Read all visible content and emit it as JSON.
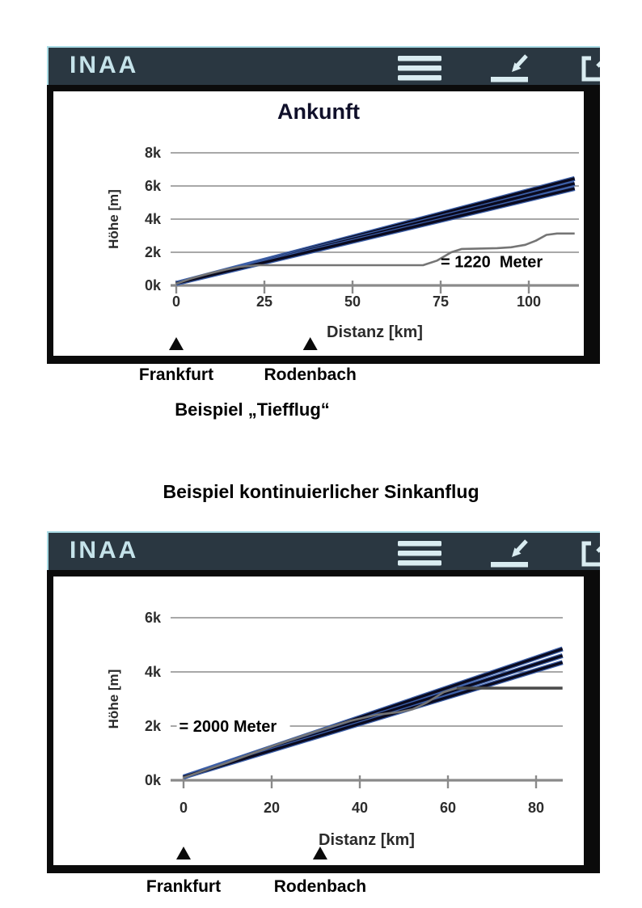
{
  "colors": {
    "header_bg": "#2a3741",
    "header_accent": "#a9dbe4",
    "app_title_text": "#c5e3ea",
    "icon": "#d9ecf1",
    "panel_border": "#0b0b0b",
    "grid": "#9b9b9b",
    "axis": "#8a8a8a",
    "tick_text": "#2d2d2d",
    "title_text": "#10102a",
    "label_text": "#2b2b2b",
    "bundle": "#0a0a1f",
    "bundle_glow": "#3c5fa8",
    "profile": "#757575",
    "level_line": "#4c4c4c",
    "annotation_text": "#000000",
    "marker": "#0a0a0a"
  },
  "panels": [
    {
      "header": {
        "title": "INAA",
        "icons": [
          {
            "name": "menu-icon"
          },
          {
            "name": "dock-arrow-icon"
          },
          {
            "name": "external-window-icon"
          }
        ]
      },
      "caption": "Beispiel „Tiefflug“",
      "chart_data": {
        "type": "line",
        "title": "Ankunft",
        "xlabel": "Distanz [km]",
        "ylabel": "Höhe [m]",
        "xlim": [
          0,
          115
        ],
        "ylim": [
          0,
          9000
        ],
        "grid": true,
        "legend": false,
        "xticks": [
          0,
          25,
          50,
          75,
          100
        ],
        "xtick_labels": [
          "0",
          "25",
          "50",
          "75",
          "100"
        ],
        "yticks": [
          0,
          2000,
          4000,
          6000,
          8000
        ],
        "ytick_labels": [
          "0k",
          "2k",
          "4k",
          "6k",
          "8k"
        ],
        "annotations": [
          {
            "text": "= 1220  Meter",
            "x_km": 75,
            "y_m": 1450,
            "bg": false
          }
        ],
        "markers": [
          {
            "label": "Frankfurt",
            "x_km": 0
          },
          {
            "label": "Rodenbach",
            "x_km": 38
          }
        ],
        "series": [
          {
            "id": "approach-track-1",
            "kind": "bundle",
            "points": [
              [
                0,
                120
              ],
              [
                113,
                6450
              ]
            ]
          },
          {
            "id": "approach-track-2",
            "kind": "bundle",
            "points": [
              [
                0,
                120
              ],
              [
                113,
                6150
              ]
            ]
          },
          {
            "id": "approach-track-3",
            "kind": "bundle",
            "points": [
              [
                0,
                120
              ],
              [
                113,
                5850
              ]
            ]
          },
          {
            "id": "altitude-profile",
            "kind": "profile",
            "points": [
              [
                0,
                100
              ],
              [
                4,
                400
              ],
              [
                9,
                700
              ],
              [
                14,
                950
              ],
              [
                18,
                1120
              ],
              [
                23,
                1220
              ],
              [
                70,
                1220
              ],
              [
                74,
                1500
              ],
              [
                78,
                2000
              ],
              [
                81,
                2200
              ],
              [
                91,
                2250
              ],
              [
                95,
                2300
              ],
              [
                99,
                2450
              ],
              [
                102,
                2700
              ],
              [
                105,
                3050
              ],
              [
                108,
                3130
              ],
              [
                113,
                3130
              ]
            ]
          }
        ]
      }
    },
    {
      "heading_above": "Beispiel kontinuierlicher Sinkanflug",
      "header": {
        "title": "INAA",
        "icons": [
          {
            "name": "menu-icon"
          },
          {
            "name": "dock-arrow-icon"
          },
          {
            "name": "external-window-icon"
          }
        ]
      },
      "chart_data": {
        "type": "line",
        "title": "",
        "xlabel": "Distanz [km]",
        "ylabel": "Höhe [m]",
        "xlim": [
          0,
          86
        ],
        "ylim": [
          0,
          7000
        ],
        "grid": true,
        "legend": false,
        "xticks": [
          0,
          20,
          40,
          60,
          80
        ],
        "xtick_labels": [
          "0",
          "20",
          "40",
          "60",
          "80"
        ],
        "yticks": [
          0,
          2000,
          4000,
          6000
        ],
        "ytick_labels": [
          "0k",
          "2k",
          "4k",
          "6k"
        ],
        "annotations": [
          {
            "text": "= 2000 Meter",
            "x_km": -1,
            "y_m": 2000,
            "bg": true
          }
        ],
        "markers": [
          {
            "label": "Frankfurt",
            "x_km": 0
          },
          {
            "label": "Rodenbach",
            "x_km": 31
          }
        ],
        "series": [
          {
            "id": "approach-track-1",
            "kind": "bundle",
            "points": [
              [
                0,
                120
              ],
              [
                86,
                4850
              ]
            ]
          },
          {
            "id": "approach-track-2",
            "kind": "bundle",
            "points": [
              [
                0,
                120
              ],
              [
                86,
                4600
              ]
            ]
          },
          {
            "id": "approach-track-3",
            "kind": "bundle",
            "points": [
              [
                0,
                120
              ],
              [
                86,
                4350
              ]
            ]
          },
          {
            "id": "altitude-profile",
            "kind": "profile",
            "points": [
              [
                0,
                100
              ],
              [
                10,
                650
              ],
              [
                20,
                1250
              ],
              [
                30,
                1800
              ],
              [
                38,
                2200
              ],
              [
                44,
                2420
              ],
              [
                49,
                2520
              ],
              [
                52,
                2620
              ],
              [
                55,
                2850
              ],
              [
                57,
                3050
              ],
              [
                59,
                3250
              ],
              [
                62,
                3400
              ]
            ]
          },
          {
            "id": "level-segment",
            "kind": "level",
            "points": [
              [
                62,
                3400
              ],
              [
                86,
                3400
              ]
            ]
          }
        ]
      }
    }
  ]
}
